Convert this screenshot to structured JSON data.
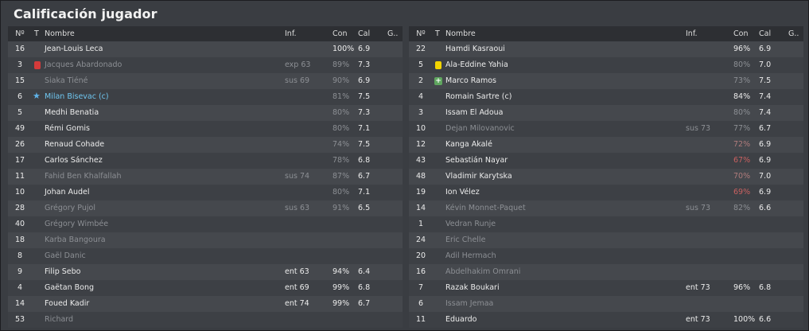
{
  "title": "Calificación jugador",
  "headers": {
    "num": "Nº",
    "t": "T",
    "name": "Nombre",
    "inf": "Inf.",
    "con": "Con",
    "cal": "Cal",
    "g": "G.."
  },
  "icon_meanings": {
    "red": "red-card-icon",
    "yellow": "yellow-card-icon",
    "plus": "substitute-plus-icon",
    "star": "captain-star-icon"
  },
  "colors": {
    "accent_link": "#6fc6f0",
    "red_card": "#d43a3a",
    "yellow_card": "#f2d400",
    "low_condition": "#c96060"
  },
  "left_rows": [
    {
      "num": "16",
      "name": "Jean-Louis Leca",
      "inf": "",
      "con": "100%",
      "cal": "6.9",
      "dim": false
    },
    {
      "num": "3",
      "icon": "red",
      "name": "Jacques Abardonado",
      "inf": "exp 63",
      "con": "89%",
      "cal": "7.3",
      "dim": true
    },
    {
      "num": "15",
      "name": "Siaka Tiéné",
      "inf": "sus 69",
      "con": "90%",
      "cal": "6.9",
      "dim": true
    },
    {
      "num": "6",
      "icon": "star",
      "name": "Milan Bisevac (c)",
      "inf": "",
      "con": "81%",
      "cal": "7.5",
      "link": true,
      "conmuted": true
    },
    {
      "num": "5",
      "name": "Medhi Benatia",
      "inf": "",
      "con": "80%",
      "cal": "7.3",
      "conmuted": true
    },
    {
      "num": "49",
      "name": "Rémi Gomis",
      "inf": "",
      "con": "80%",
      "cal": "7.1",
      "conmuted": true
    },
    {
      "num": "26",
      "name": "Renaud Cohade",
      "inf": "",
      "con": "74%",
      "cal": "7.5",
      "conmuted": true
    },
    {
      "num": "17",
      "name": "Carlos Sánchez",
      "inf": "",
      "con": "78%",
      "cal": "6.8",
      "conmuted": true
    },
    {
      "num": "11",
      "name": "Fahid Ben Khalfallah",
      "inf": "sus 74",
      "con": "87%",
      "cal": "6.7",
      "dim": true
    },
    {
      "num": "10",
      "name": "Johan Audel",
      "inf": "",
      "con": "80%",
      "cal": "7.1",
      "conmuted": true
    },
    {
      "num": "28",
      "name": "Grégory Pujol",
      "inf": "sus 63",
      "con": "91%",
      "cal": "6.5",
      "dim": true
    },
    {
      "num": "40",
      "name": "Grégory Wimbée",
      "inf": "",
      "con": "",
      "cal": "",
      "dim": true
    },
    {
      "num": "18",
      "name": "Karba Bangoura",
      "inf": "",
      "con": "",
      "cal": "",
      "dim": true
    },
    {
      "num": "8",
      "name": "Gaël Danic",
      "inf": "",
      "con": "",
      "cal": "",
      "dim": true
    },
    {
      "num": "9",
      "name": "Filip Sebo",
      "inf": "ent 63",
      "con": "94%",
      "cal": "6.4"
    },
    {
      "num": "4",
      "name": "Gaëtan Bong",
      "inf": "ent 69",
      "con": "99%",
      "cal": "6.8"
    },
    {
      "num": "14",
      "name": "Foued Kadir",
      "inf": "ent 74",
      "con": "99%",
      "cal": "6.7"
    },
    {
      "num": "53",
      "name": "Richard",
      "inf": "",
      "con": "",
      "cal": "",
      "dim": true
    }
  ],
  "right_rows": [
    {
      "num": "22",
      "name": "Hamdi Kasraoui",
      "inf": "",
      "con": "96%",
      "cal": "6.9"
    },
    {
      "num": "5",
      "icon": "yellow",
      "name": "Ala-Eddine Yahia",
      "inf": "",
      "con": "80%",
      "cal": "7.0",
      "conmuted": true
    },
    {
      "num": "2",
      "icon": "plus",
      "name": "Marco Ramos",
      "inf": "",
      "con": "73%",
      "cal": "7.5",
      "conmuted": true
    },
    {
      "num": "4",
      "name": "Romain Sartre (c)",
      "inf": "",
      "con": "84%",
      "cal": "7.4"
    },
    {
      "num": "3",
      "name": "Issam El Adoua",
      "inf": "",
      "con": "80%",
      "cal": "7.4",
      "conmuted": true
    },
    {
      "num": "10",
      "name": "Dejan Milovanovic",
      "inf": "sus 73",
      "con": "77%",
      "cal": "6.7",
      "dim": true,
      "conmuted": true
    },
    {
      "num": "12",
      "name": "Kanga Akalé",
      "inf": "",
      "con": "72%",
      "cal": "6.9",
      "conwarn": true
    },
    {
      "num": "43",
      "name": "Sebastián Nayar",
      "inf": "",
      "con": "67%",
      "cal": "6.9",
      "conbad": true
    },
    {
      "num": "48",
      "name": "Vladimir Karytska",
      "inf": "",
      "con": "70%",
      "cal": "7.0",
      "conwarn": true
    },
    {
      "num": "19",
      "name": "Ion Vélez",
      "inf": "",
      "con": "69%",
      "cal": "6.9",
      "conbad": true
    },
    {
      "num": "14",
      "name": "Kévin Monnet-Paquet",
      "inf": "sus 73",
      "con": "82%",
      "cal": "6.6",
      "dim": true
    },
    {
      "num": "1",
      "name": "Vedran Runje",
      "inf": "",
      "con": "",
      "cal": "",
      "dim": true
    },
    {
      "num": "24",
      "name": "Eric Chelle",
      "inf": "",
      "con": "",
      "cal": "",
      "dim": true
    },
    {
      "num": "20",
      "name": "Adil Hermach",
      "inf": "",
      "con": "",
      "cal": "",
      "dim": true
    },
    {
      "num": "16",
      "name": "Abdelhakim Omrani",
      "inf": "",
      "con": "",
      "cal": "",
      "dim": true
    },
    {
      "num": "7",
      "name": "Razak Boukari",
      "inf": "ent 73",
      "con": "96%",
      "cal": "6.8"
    },
    {
      "num": "6",
      "name": "Issam Jemaa",
      "inf": "",
      "con": "",
      "cal": "",
      "dim": true
    },
    {
      "num": "11",
      "name": "Eduardo",
      "inf": "ent 73",
      "con": "100%",
      "cal": "6.6"
    }
  ]
}
